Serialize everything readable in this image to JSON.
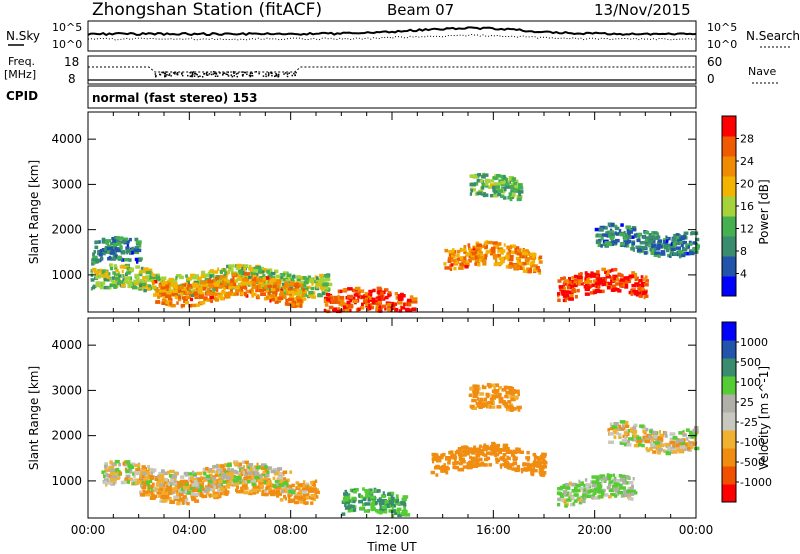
{
  "header": {
    "station_title": "Zhongshan Station (fitACF)",
    "beam": "Beam 07",
    "date": "13/Nov/2015"
  },
  "labels": {
    "nsky": "N.Sky",
    "nsky_hi": "10^5",
    "nsky_lo": "10^0",
    "nsearch": "N.Search",
    "nsearch_hi": "10^5",
    "nsearch_lo": "10^0",
    "freq_line1": "Freq.",
    "freq_line2": "[MHz]",
    "freq_hi": "18",
    "freq_lo": "8",
    "nave": "Nave",
    "nave_hi": "60",
    "nave_lo": "0",
    "cpid": "CPID",
    "cpid_value": "normal (fast stereo) 153"
  },
  "colors": {
    "power_scale": [
      "#0000ff",
      "#2255aa",
      "#3a8c6e",
      "#44b050",
      "#a6d23a",
      "#f2b400",
      "#f08a00",
      "#f05a00",
      "#ff0000"
    ],
    "velocity_scale": [
      "#ff0000",
      "#f05000",
      "#f08c10",
      "#f0b030",
      "#c8c8c0",
      "#b0b0a8",
      "#55cc33",
      "#3a8c6e",
      "#2255aa",
      "#0000ff"
    ]
  },
  "chart_data": [
    {
      "type": "heatmap",
      "title": "",
      "ylabel": "Slant Range [km]",
      "xlabel": "",
      "xlim": [
        "00:00",
        "24:00"
      ],
      "ylim": [
        180,
        4600
      ],
      "x_ticks": [
        "00:00",
        "04:00",
        "08:00",
        "12:00",
        "16:00",
        "20:00",
        "00:00"
      ],
      "y_ticks": [
        1000,
        2000,
        3000,
        4000
      ],
      "colorbar": {
        "label": "Power [dB]",
        "ticks": [
          "4",
          "8",
          "12",
          "16",
          "20",
          "24",
          "28"
        ],
        "range": [
          0,
          30
        ]
      },
      "features": [
        {
          "range_km": 900,
          "start_h": 0.1,
          "end_h": 9.5,
          "mean_db": 14
        },
        {
          "range_km": 700,
          "start_h": 2.5,
          "end_h": 8.5,
          "mean_db": 22
        },
        {
          "range_km": 400,
          "start_h": 9.3,
          "end_h": 12.8,
          "mean_db": 26
        },
        {
          "range_km": 1500,
          "start_h": 0.1,
          "end_h": 2.0,
          "mean_db": 8
        },
        {
          "range_km": 2900,
          "start_h": 15.0,
          "end_h": 17.0,
          "mean_db": 12
        },
        {
          "range_km": 1400,
          "start_h": 14.0,
          "end_h": 17.8,
          "mean_db": 22
        },
        {
          "range_km": 800,
          "start_h": 18.5,
          "end_h": 22.0,
          "mean_db": 27
        },
        {
          "range_km": 1800,
          "start_h": 20.0,
          "end_h": 24.0,
          "mean_db": 8
        }
      ]
    },
    {
      "type": "heatmap",
      "title": "",
      "ylabel": "Slant Range [km]",
      "xlabel": "Time UT",
      "xlim": [
        "00:00",
        "24:00"
      ],
      "ylim": [
        180,
        4600
      ],
      "x_ticks": [
        "00:00",
        "04:00",
        "08:00",
        "12:00",
        "16:00",
        "20:00",
        "00:00"
      ],
      "y_ticks": [
        1000,
        2000,
        3000,
        4000
      ],
      "colorbar": {
        "label": "Velocity [m s^-1]",
        "ticks": [
          "-1000",
          "-500",
          "-100",
          "-25",
          "25",
          "100",
          "500",
          "1000"
        ],
        "range": [
          -1200,
          1200
        ]
      },
      "features": [
        {
          "range_km": 900,
          "start_h": 2.0,
          "end_h": 9.0,
          "mean_ms": -150
        },
        {
          "range_km": 1100,
          "start_h": 0.5,
          "end_h": 8.0,
          "mean_ms": 0
        },
        {
          "range_km": 500,
          "start_h": 10.0,
          "end_h": 12.5,
          "mean_ms": 500
        },
        {
          "range_km": 1500,
          "start_h": 13.5,
          "end_h": 18.0,
          "mean_ms": -300
        },
        {
          "range_km": 2800,
          "start_h": 15.0,
          "end_h": 17.0,
          "mean_ms": -200
        },
        {
          "range_km": 800,
          "start_h": 18.5,
          "end_h": 21.5,
          "mean_ms": 100
        },
        {
          "range_km": 2000,
          "start_h": 20.5,
          "end_h": 24.0,
          "mean_ms": 0
        }
      ]
    }
  ]
}
